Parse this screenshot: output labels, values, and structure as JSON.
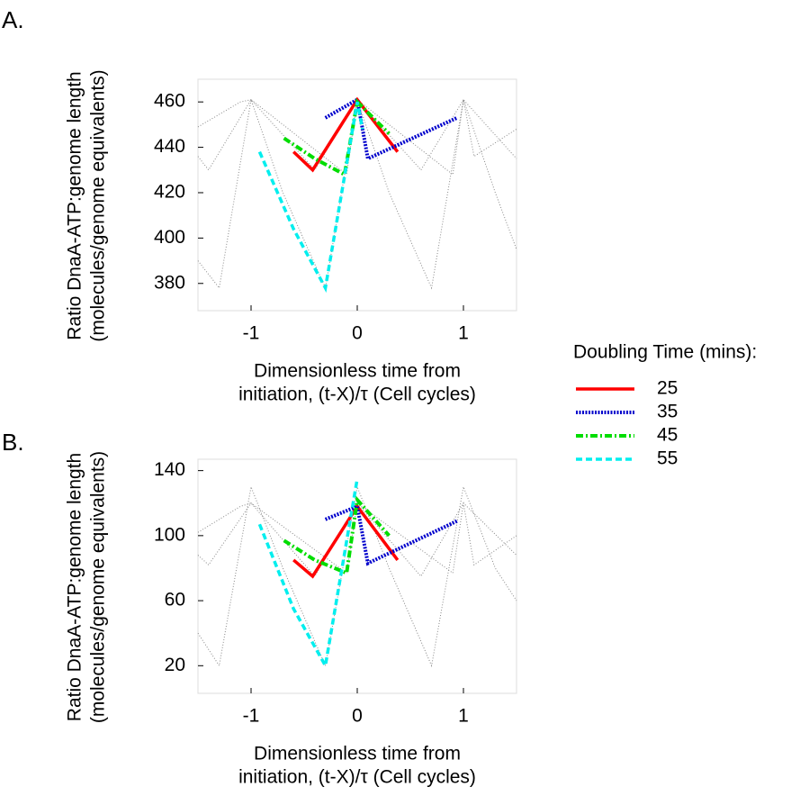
{
  "chart_data": [
    {
      "type": "line",
      "panel_label": "A.",
      "ylabel": [
        "Ratio DnaA-ATP:genome length",
        "(molecules/genome equivalents)"
      ],
      "xlabel": [
        "Dimensionless time from",
        "initiation, (t-X)/τ (Cell cycles)"
      ],
      "legend_title": "Doubling Time (mins):",
      "legend": "right",
      "xlim": [
        -1.5,
        1.5
      ],
      "xticks": [
        -1,
        0,
        1
      ],
      "ylim": [
        368,
        470
      ],
      "yticks": [
        380,
        400,
        420,
        440,
        460
      ],
      "series": [
        {
          "color": "#888888",
          "dash": "dotted",
          "x": [
            -1.5,
            -1.3,
            -1,
            -0.7,
            -0.3,
            0,
            0.3,
            0.7,
            1,
            1.3,
            1.5
          ],
          "values": [
            390,
            378,
            461,
            420,
            378,
            461,
            420,
            378,
            461,
            420,
            395
          ]
        },
        {
          "color": "#888888",
          "dash": "dotted",
          "x": [
            -1.5,
            -1.1,
            -1,
            -0.4,
            0,
            0.6,
            1,
            1.1,
            1.5
          ],
          "values": [
            449,
            460,
            461,
            430,
            461,
            430,
            461,
            436,
            448
          ]
        },
        {
          "color": "#888888",
          "dash": "dotted",
          "x": [
            -1.5,
            -1.4,
            -1,
            -0.1,
            0,
            0.9,
            1,
            1.5
          ],
          "values": [
            436,
            430,
            461,
            428,
            461,
            428,
            461,
            435
          ]
        },
        {
          "name": "25",
          "color": "#ff0000",
          "dash": "solid",
          "x": [
            -0.6,
            -0.42,
            0,
            0.38
          ],
          "values": [
            438,
            430,
            461,
            438
          ]
        },
        {
          "name": "35",
          "color": "#0000cc",
          "dash": "dotted",
          "x": [
            -0.3,
            0,
            0.1,
            0.94
          ],
          "values": [
            453,
            461,
            435,
            453
          ]
        },
        {
          "name": "45",
          "color": "#00dd00",
          "dash": "dashdot",
          "x": [
            -0.69,
            -0.4,
            -0.12,
            0,
            0.3
          ],
          "values": [
            444,
            435,
            428,
            460,
            446
          ]
        },
        {
          "name": "55",
          "color": "#00eeee",
          "dash": "dashed",
          "x": [
            -0.92,
            -0.6,
            -0.3,
            0,
            0.05
          ],
          "values": [
            438,
            404,
            378,
            460,
            448
          ]
        }
      ]
    },
    {
      "type": "line",
      "panel_label": "B.",
      "ylabel": [
        "Ratio DnaA-ATP:genome length",
        "(molecules/genome equivalents)"
      ],
      "xlabel": [
        "Dimensionless time from",
        "initiation, (t-X)/τ (Cell cycles)"
      ],
      "xlim": [
        -1.5,
        1.5
      ],
      "xticks": [
        -1,
        0,
        1
      ],
      "ylim": [
        3,
        147
      ],
      "yticks": [
        20,
        60,
        100,
        140
      ],
      "series": [
        {
          "color": "#888888",
          "dash": "dotted",
          "x": [
            -1.5,
            -1.3,
            -1,
            -0.7,
            -0.3,
            0,
            0.3,
            0.7,
            1,
            1.3,
            1.5
          ],
          "values": [
            40,
            20,
            130,
            80,
            20,
            130,
            80,
            20,
            130,
            80,
            60
          ]
        },
        {
          "color": "#888888",
          "dash": "dotted",
          "x": [
            -1.5,
            -1.1,
            -1,
            -0.4,
            0,
            0.6,
            1,
            1.1,
            1.5
          ],
          "values": [
            102,
            118,
            120,
            75,
            120,
            75,
            120,
            82,
            100
          ]
        },
        {
          "color": "#888888",
          "dash": "dotted",
          "x": [
            -1.5,
            -1.4,
            -1,
            -0.1,
            0,
            0.9,
            1,
            1.5
          ],
          "values": [
            88,
            82,
            120,
            77,
            120,
            77,
            120,
            88
          ]
        },
        {
          "name": "25",
          "color": "#ff0000",
          "dash": "solid",
          "x": [
            -0.6,
            -0.42,
            0,
            0.38
          ],
          "values": [
            85,
            75,
            118,
            85
          ]
        },
        {
          "name": "35",
          "color": "#0000cc",
          "dash": "dotted",
          "x": [
            -0.3,
            0,
            0.1,
            0.94
          ],
          "values": [
            110,
            118,
            83,
            109
          ]
        },
        {
          "name": "45",
          "color": "#00dd00",
          "dash": "dashdot",
          "x": [
            -0.69,
            -0.4,
            -0.1,
            0,
            0.3
          ],
          "values": [
            97,
            85,
            77,
            122,
            100
          ]
        },
        {
          "name": "55",
          "color": "#00eeee",
          "dash": "dashed",
          "x": [
            -0.92,
            -0.6,
            -0.3,
            0
          ],
          "values": [
            107,
            55,
            20,
            135
          ]
        }
      ]
    }
  ]
}
